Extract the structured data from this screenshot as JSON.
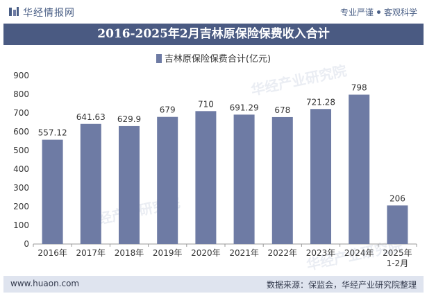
{
  "header": {
    "brand": "华经情报网",
    "tag_left": "专业严谨",
    "tag_right": "客观科学"
  },
  "title": "2016-2025年2月吉林原保险保费收入合计",
  "legend": [
    "吉林原保险保费合计(亿元)"
  ],
  "footer": {
    "website": "www.huaon.com",
    "source": "数据来源：保监会，华经产业研究院整理"
  },
  "watermark": "华经产业研究院",
  "colors": {
    "bar": "#6e7ba4",
    "title_bg": "#4a5a82",
    "footer_bg": "#dfe4ef"
  },
  "chart_data": {
    "type": "bar",
    "categories": [
      "2016年",
      "2017年",
      "2018年",
      "2019年",
      "2020年",
      "2021年",
      "2022年",
      "2023年",
      "2024年",
      "2025年\n1-2月"
    ],
    "series": [
      {
        "name": "吉林原保险保费合计(亿元)",
        "values": [
          557.12,
          641.63,
          629.9,
          679,
          710,
          691.29,
          678,
          721.28,
          798,
          206
        ]
      }
    ],
    "data_labels": [
      "557.12",
      "641.63",
      "629.9",
      "679",
      "710",
      "691.29",
      "678",
      "721.28",
      "798",
      "206"
    ],
    "ylim": [
      0,
      900
    ],
    "yticks": [
      0,
      100,
      200,
      300,
      400,
      500,
      600,
      700,
      800,
      900
    ],
    "grid": false,
    "legend_position": "top-center"
  }
}
